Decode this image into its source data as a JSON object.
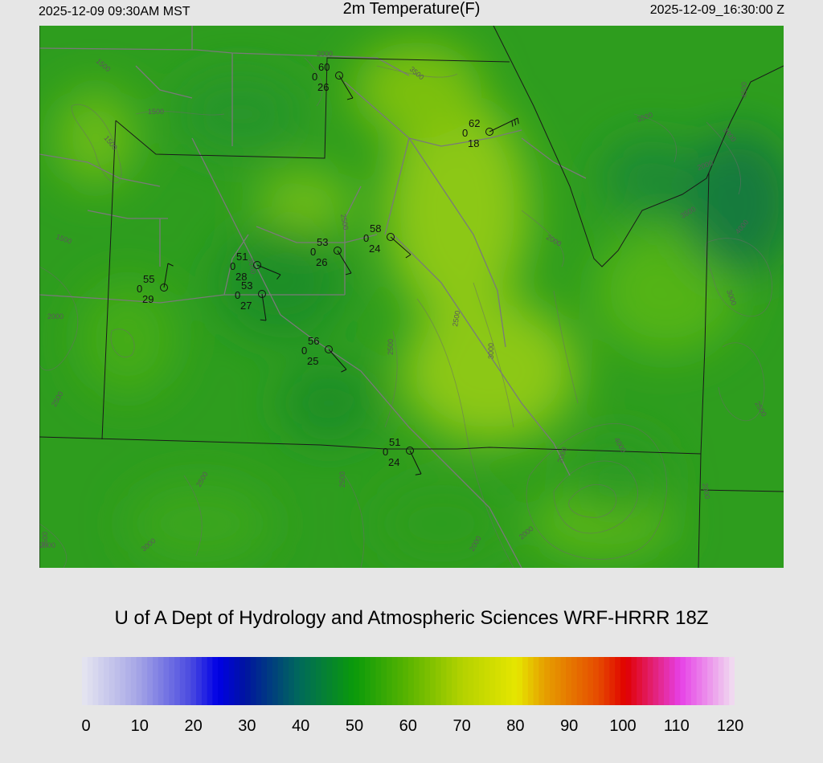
{
  "header": {
    "local_time": "2025-12-09 09:30AM MST",
    "title": "2m Temperature(F)",
    "valid_time": "2025-12-09_16:30:00 Z"
  },
  "credit": "U of A Dept of Hydrology and Atmospheric Sciences WRF-HRRR 18Z",
  "colorbar": {
    "ticks": [
      "0",
      "10",
      "20",
      "30",
      "40",
      "50",
      "60",
      "70",
      "80",
      "90",
      "100",
      "110",
      "120"
    ],
    "stops": [
      {
        "value": 0,
        "color": "#e6e6f0"
      },
      {
        "value": 10,
        "color": "#a8a8e6"
      },
      {
        "value": 20,
        "color": "#4a4ae0"
      },
      {
        "value": 25,
        "color": "#0000e6"
      },
      {
        "value": 30,
        "color": "#0014a0"
      },
      {
        "value": 40,
        "color": "#006a5a"
      },
      {
        "value": 50,
        "color": "#0a9a0a"
      },
      {
        "value": 60,
        "color": "#5ab400"
      },
      {
        "value": 70,
        "color": "#b4d200"
      },
      {
        "value": 80,
        "color": "#e6e600"
      },
      {
        "value": 85,
        "color": "#e6a000"
      },
      {
        "value": 95,
        "color": "#e64a00"
      },
      {
        "value": 100,
        "color": "#e00000"
      },
      {
        "value": 110,
        "color": "#e640e6"
      },
      {
        "value": 120,
        "color": "#f0e0f0"
      }
    ]
  },
  "contour_labels": [
    "1500",
    "1500",
    "1500",
    "1500",
    "2000",
    "2500",
    "3500",
    "2000",
    "2000",
    "2500",
    "3000",
    "4000",
    "3500",
    "2000",
    "2500",
    "3000",
    "2500",
    "2500",
    "2500",
    "3500",
    "3000",
    "2000",
    "2000",
    "2000",
    "4000",
    "4500",
    "3500",
    "3000",
    "2000",
    "3000",
    "2500",
    "2000"
  ],
  "stations": [
    {
      "temp": "60",
      "wind": "0",
      "dew": "26"
    },
    {
      "temp": "62",
      "wind": "0",
      "dew": "18"
    },
    {
      "temp": "58",
      "wind": "0",
      "dew": "24"
    },
    {
      "temp": "53",
      "wind": "0",
      "dew": "26"
    },
    {
      "temp": "51",
      "wind": "0",
      "dew": "28"
    },
    {
      "temp": "53",
      "wind": "0",
      "dew": "27"
    },
    {
      "temp": "55",
      "wind": "0",
      "dew": "29"
    },
    {
      "temp": "56",
      "wind": "0",
      "dew": "25"
    },
    {
      "temp": "51",
      "wind": "0",
      "dew": "24"
    }
  ]
}
